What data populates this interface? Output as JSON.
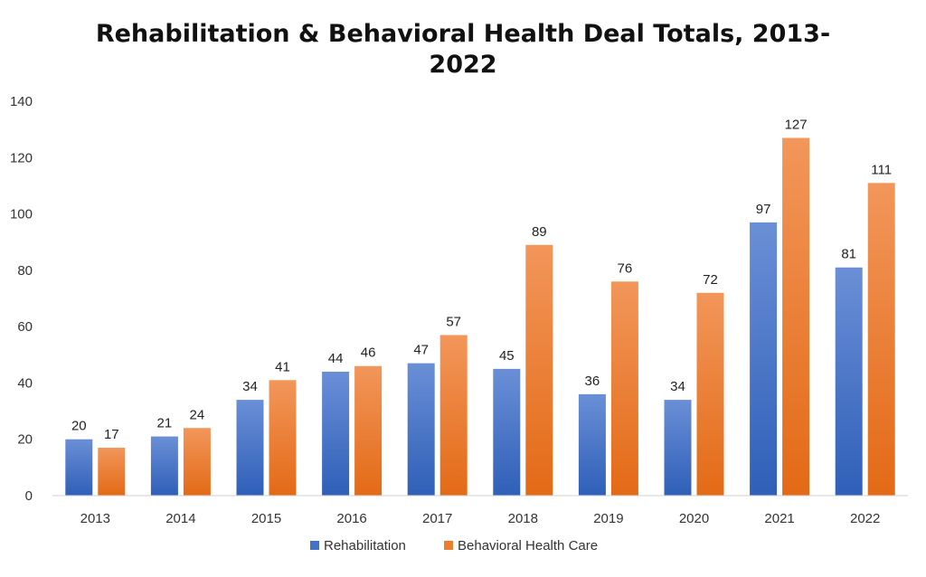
{
  "chart_data": {
    "type": "bar",
    "title_lines": [
      "Rehabilitation & Behavioral Health Deal Totals, 2013-",
      "2022"
    ],
    "categories": [
      "2013",
      "2014",
      "2015",
      "2016",
      "2017",
      "2018",
      "2019",
      "2020",
      "2021",
      "2022"
    ],
    "series": [
      {
        "name": "Rehabilitation",
        "values": [
          20,
          21,
          34,
          44,
          47,
          45,
          36,
          34,
          97,
          81
        ],
        "color": "#4472C4"
      },
      {
        "name": "Behavioral Health Care",
        "values": [
          17,
          24,
          41,
          46,
          57,
          89,
          76,
          72,
          127,
          111
        ],
        "color": "#ED7D31"
      }
    ],
    "ylim": [
      0,
      140
    ],
    "yticks": [
      0,
      20,
      40,
      60,
      80,
      100,
      120,
      140
    ],
    "grid": false,
    "data_labels": true,
    "legend_position": "bottom-center"
  }
}
